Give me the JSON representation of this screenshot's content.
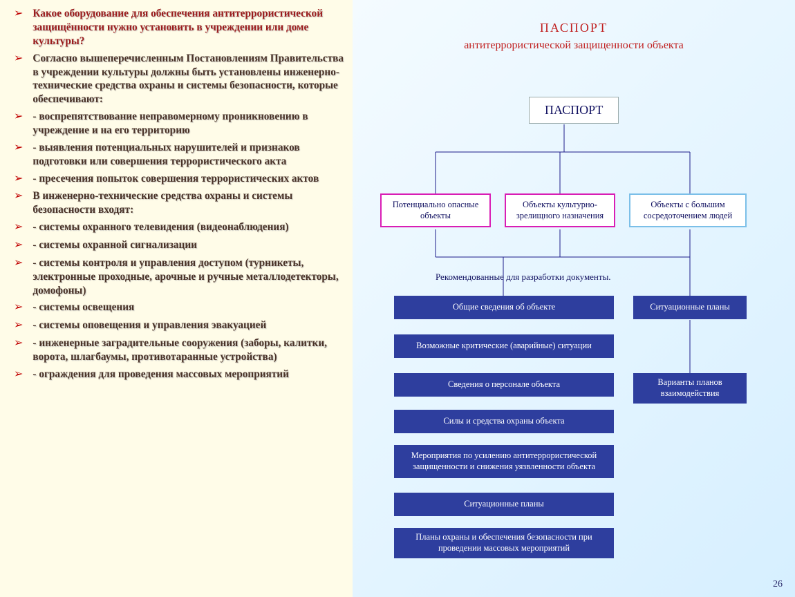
{
  "left": {
    "items": [
      {
        "text": "Какое оборудование для обеспечения антитеррористической защищённости нужно установить в учреждении или доме культуры?",
        "red": true
      },
      {
        "text": "Согласно вышеперечисленным Постановлениям Правительства в учреждении культуры должны быть установлены инженерно-технические средства охраны и системы безопасности, которые обеспечивают:"
      },
      {
        "text": "- воспрепятствование неправомерному проникновению в учреждение и на его территорию"
      },
      {
        "text": "- выявления потенциальных нарушителей и признаков подготовки или совершения террористического акта"
      },
      {
        "text": "- пресечения попыток совершения террористических актов"
      },
      {
        "text": "В инженерно-технические средства охраны и системы безопасности входят:"
      },
      {
        "text": "- системы охранного телевидения (видеонаблюдения)"
      },
      {
        "text": "- системы охранной сигнализации"
      },
      {
        "text": "- системы контроля и управления доступом (турникеты, электронные проходные, арочные и ручные металлодетекторы, домофоны)"
      },
      {
        "text": "- системы освещения"
      },
      {
        "text": "- системы оповещения и управления эвакуацией"
      },
      {
        "text": "- инженерные заградительные сооружения (заборы, калитки, ворота, шлагбаумы, противотаранные устройства)"
      },
      {
        "text": "- ограждения для проведения массовых мероприятий"
      }
    ]
  },
  "right": {
    "title1": "ПАСПОРТ",
    "title2": "антитеррористической защищенности объекта",
    "passport": "ПАСПОРТ",
    "cats": [
      "Потенциально опасные объекты",
      "Объекты культурно-зрелищного назначения",
      "Объекты с большим сосредоточением людей"
    ],
    "recLabel": "Рекомендованные для разработки документы.",
    "docsLeft": [
      "Общие сведения об объекте",
      "Возможные критические (аварийные) ситуации",
      "Сведения о персонале объекта",
      "Силы и средства охраны объекта",
      "Мероприятия по усилению антитеррористической защищенности и снижения уязвленности объекта",
      "Ситуационные планы",
      "Планы охраны и обеспечения безопасности при проведении массовых мероприятий"
    ],
    "docsRight": [
      "Ситуационные планы",
      "Варианты планов взаимодействия"
    ],
    "leftTops": [
      428,
      484,
      540,
      593,
      644,
      713,
      764
    ],
    "leftHeights": [
      34,
      34,
      34,
      34,
      48,
      34,
      44
    ],
    "rightTops": [
      428,
      540
    ],
    "rightHeights": [
      34,
      44
    ],
    "pageNum": "26"
  },
  "colors": {
    "leftBg": "#fffce8",
    "bulletMarker": "#c00000",
    "textDark": "#4a3328",
    "textRed": "#9b1c1c",
    "diagramBgFrom": "#f4fbff",
    "diagramBgTo": "#d6efff",
    "titleRed": "#c02020",
    "navy": "#101060",
    "magenta": "#d91db5",
    "lightBlueBorder": "#7bbfe8",
    "docBlue": "#2e3e9e",
    "line": "#1a1a8a"
  }
}
